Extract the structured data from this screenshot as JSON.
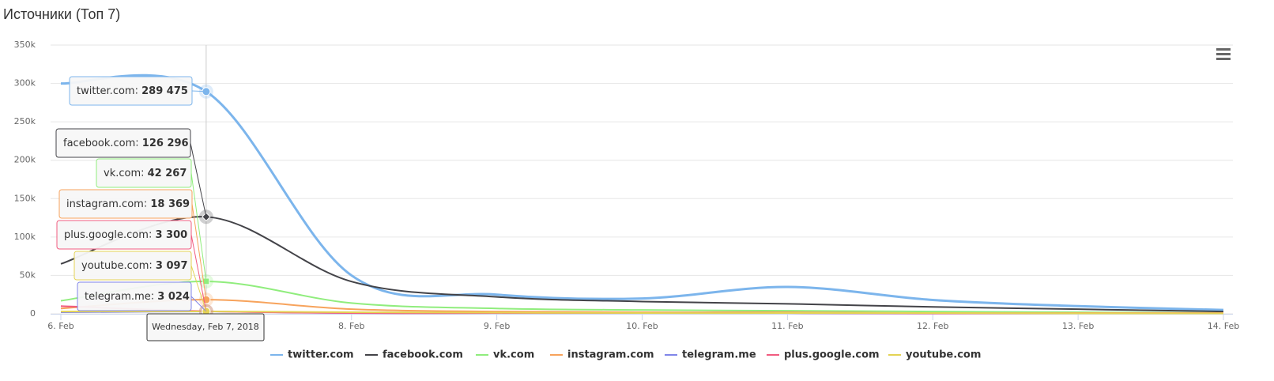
{
  "chart_data": {
    "type": "line",
    "title": "Источники (Топ 7)",
    "categories": [
      "6. Feb",
      "7. Feb",
      "8. Feb",
      "9. Feb",
      "10. Feb",
      "11. Feb",
      "12. Feb",
      "13. Feb",
      "14. Feb"
    ],
    "ylim": [
      0,
      350000
    ],
    "yticks": [
      0,
      {
        "value": 50000,
        "label": "50k"
      },
      {
        "value": 100000,
        "label": "100k"
      },
      {
        "value": 150000,
        "label": "150k"
      },
      {
        "value": 200000,
        "label": "200k"
      },
      {
        "value": 250000,
        "label": "250k"
      },
      {
        "value": 300000,
        "label": "300k"
      },
      {
        "value": 350000,
        "label": "350k"
      }
    ],
    "grid": true,
    "tooltip_date": "Wednesday, Feb 7, 2018",
    "series": [
      {
        "name": "twitter.com",
        "color": "#7cb5ec",
        "values": [
          300000,
          289475,
          50000,
          25000,
          20000,
          35000,
          18000,
          10000,
          5000
        ],
        "value_labels": [
          null,
          "289 475",
          null,
          null,
          null,
          null,
          null,
          null,
          null
        ]
      },
      {
        "name": "facebook.com",
        "color": "#434348",
        "values": [
          65000,
          126296,
          42000,
          22000,
          16000,
          13000,
          9000,
          6000,
          3000
        ],
        "value_labels": [
          null,
          "126 296",
          null,
          null,
          null,
          null,
          null,
          null,
          null
        ]
      },
      {
        "name": "vk.com",
        "color": "#90ed7d",
        "values": [
          17000,
          42267,
          14000,
          7000,
          5000,
          4000,
          3000,
          2000,
          1000
        ],
        "value_labels": [
          null,
          "42 267",
          null,
          null,
          null,
          null,
          null,
          null,
          null
        ]
      },
      {
        "name": "instagram.com",
        "color": "#f7a35c",
        "values": [
          7000,
          18369,
          6000,
          3000,
          2000,
          2000,
          1000,
          1000,
          1000
        ],
        "value_labels": [
          null,
          "18 369",
          null,
          null,
          null,
          null,
          null,
          null,
          null
        ]
      },
      {
        "name": "telegram.me",
        "color": "#8085e9",
        "values": [
          2000,
          3024,
          1000,
          1000,
          1000,
          1000,
          500,
          500,
          500
        ],
        "value_labels": [
          null,
          "3 024",
          null,
          null,
          null,
          null,
          null,
          null,
          null
        ]
      },
      {
        "name": "plus.google.com",
        "color": "#f15c80",
        "values": [
          10000,
          3300,
          1000,
          1000,
          1000,
          1000,
          500,
          500,
          500
        ],
        "value_labels": [
          null,
          "3 300",
          null,
          null,
          null,
          null,
          null,
          null,
          null
        ]
      },
      {
        "name": "youtube.com",
        "color": "#e4d354",
        "values": [
          3000,
          3097,
          2000,
          1500,
          1000,
          1000,
          1000,
          500,
          500
        ],
        "value_labels": [
          null,
          "3 097",
          null,
          null,
          null,
          null,
          null,
          null,
          null
        ]
      }
    ]
  }
}
